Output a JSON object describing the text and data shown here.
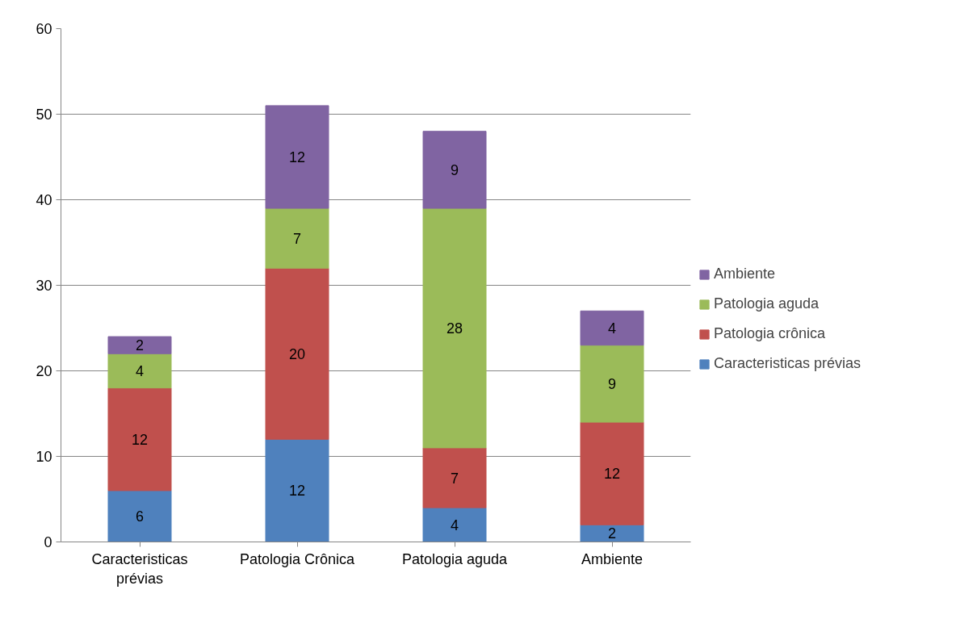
{
  "chart_data": {
    "type": "bar",
    "stacked": true,
    "categories": [
      "Caracteristicas prévias",
      "Patologia Crônica",
      "Patologia aguda",
      "Ambiente"
    ],
    "series": [
      {
        "name": "Caracteristicas prévias",
        "color": "#4f81bd",
        "values": [
          6,
          12,
          4,
          2
        ]
      },
      {
        "name": "Patologia crônica",
        "color": "#c0504d",
        "values": [
          12,
          20,
          7,
          12
        ]
      },
      {
        "name": "Patologia aguda",
        "color": "#9bbb59",
        "values": [
          4,
          7,
          28,
          9
        ]
      },
      {
        "name": "Ambiente",
        "color": "#8064a2",
        "values": [
          2,
          12,
          9,
          4
        ]
      }
    ],
    "ylim": [
      0,
      60
    ],
    "yticks": [
      0,
      10,
      20,
      30,
      40,
      50,
      60
    ],
    "grid": "y",
    "legend": "right",
    "data_labels": true
  }
}
